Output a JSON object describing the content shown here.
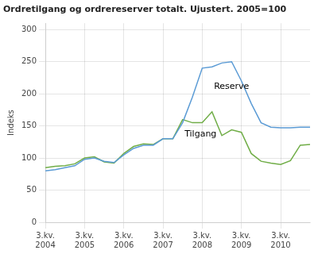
{
  "chart_data": {
    "type": "line",
    "title": "Ordretilgang og ordrereserver totalt. Ujustert. 2005=100",
    "y_label": "Indeks",
    "categories": [
      "3.kv.\n2004",
      null,
      null,
      null,
      "3.kv.\n2005",
      null,
      null,
      null,
      "3.kv.\n2006",
      null,
      null,
      null,
      "3.kv.\n2007",
      null,
      null,
      null,
      "3.kv.\n2008",
      null,
      null,
      null,
      "3.kv.\n2009",
      null,
      null,
      null,
      "3.kv.\n2010",
      null,
      null,
      null
    ],
    "series": [
      {
        "name": "Reserve",
        "color": "#5B9BD5",
        "values": [
          80,
          82,
          85,
          88,
          98,
          100,
          95,
          93,
          105,
          115,
          120,
          120,
          130,
          130,
          155,
          195,
          240,
          242,
          248,
          250,
          220,
          185,
          155,
          148,
          147,
          147,
          148,
          148
        ]
      },
      {
        "name": "Tilgang",
        "color": "#70AD47",
        "values": [
          85,
          87,
          88,
          91,
          100,
          102,
          94,
          92,
          107,
          118,
          122,
          121,
          130,
          130,
          160,
          155,
          155,
          172,
          135,
          144,
          140,
          107,
          95,
          92,
          90,
          96,
          120,
          121
        ]
      }
    ],
    "annotations": [
      {
        "text": "Reserve",
        "x": 17.2,
        "y": 205
      },
      {
        "text": "Tilgang",
        "x": 14.2,
        "y": 130
      }
    ],
    "ylim": [
      0,
      310
    ],
    "yticks": [
      0,
      50,
      100,
      150,
      200,
      250,
      300
    ],
    "grid": true
  }
}
